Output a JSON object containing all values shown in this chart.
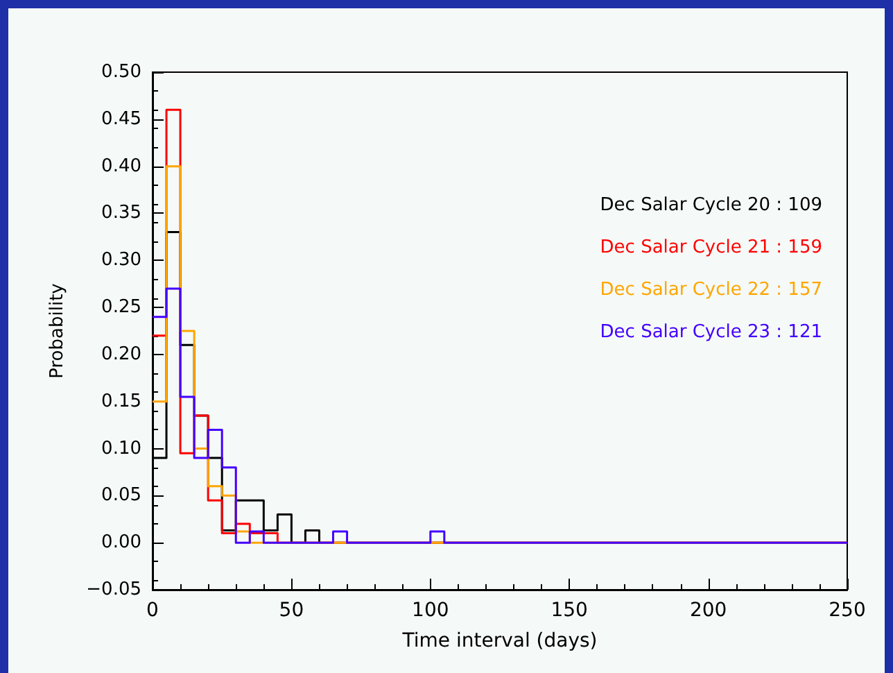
{
  "chart_data": {
    "type": "histogram",
    "xlabel": "Time interval (days)",
    "ylabel": "Probability",
    "bins": [
      0,
      5,
      10,
      15,
      20,
      25,
      30,
      35,
      40,
      45,
      50,
      55,
      60,
      65,
      70,
      75,
      80,
      85,
      90,
      95,
      100,
      105,
      110,
      115,
      120,
      125,
      130,
      135,
      140,
      145,
      150,
      155,
      160,
      165,
      170,
      175,
      180,
      185,
      190,
      195,
      200,
      205,
      210,
      215,
      220,
      225,
      230,
      235,
      240,
      245,
      250
    ],
    "series": [
      {
        "name": "Dec Salar Cycle 20 : 109",
        "color": "#000000",
        "values": [
          0.09,
          0.33,
          0.21,
          0.135,
          0.09,
          0.013,
          0.045,
          0.045,
          0.013,
          0.03,
          0,
          0.013,
          0,
          0,
          0,
          0,
          0,
          0,
          0,
          0,
          0,
          0,
          0,
          0,
          0,
          0,
          0,
          0,
          0,
          0,
          0,
          0,
          0,
          0,
          0,
          0,
          0,
          0,
          0,
          0,
          0,
          0,
          0,
          0,
          0,
          0,
          0,
          0,
          0,
          0
        ]
      },
      {
        "name": "Dec Salar Cycle 21 : 159",
        "color": "#ff0000",
        "values": [
          0.22,
          0.46,
          0.095,
          0.135,
          0.045,
          0.01,
          0.02,
          0.01,
          0.01,
          0,
          0,
          0,
          0,
          0,
          0,
          0,
          0,
          0,
          0,
          0,
          0,
          0,
          0,
          0,
          0,
          0,
          0,
          0,
          0,
          0,
          0,
          0,
          0,
          0,
          0,
          0,
          0,
          0,
          0,
          0,
          0,
          0,
          0,
          0,
          0,
          0,
          0,
          0,
          0,
          0
        ]
      },
      {
        "name": "Dec Salar Cycle 22 : 157",
        "color": "#ffa500",
        "values": [
          0.15,
          0.4,
          0.225,
          0.1,
          0.06,
          0.05,
          0.012,
          0,
          0,
          0,
          0,
          0,
          0,
          0,
          0,
          0,
          0,
          0,
          0,
          0,
          0,
          0,
          0,
          0,
          0,
          0,
          0,
          0,
          0,
          0,
          0,
          0,
          0,
          0,
          0,
          0,
          0,
          0,
          0,
          0,
          0,
          0,
          0,
          0,
          0,
          0,
          0,
          0,
          0,
          0
        ]
      },
      {
        "name": "Dec Salar Cycle 23 : 121",
        "color": "#4400ff",
        "values": [
          0.24,
          0.27,
          0.155,
          0.09,
          0.12,
          0.08,
          0,
          0.012,
          0,
          0,
          0,
          0,
          0,
          0.012,
          0,
          0,
          0,
          0,
          0,
          0,
          0.012,
          0,
          0,
          0,
          0,
          0,
          0,
          0,
          0,
          0,
          0,
          0,
          0,
          0,
          0,
          0,
          0,
          0,
          0,
          0,
          0,
          0,
          0,
          0,
          0,
          0,
          0,
          0,
          0,
          0
        ]
      }
    ],
    "xlim": [
      0,
      250
    ],
    "xticks": [
      0,
      50,
      100,
      150,
      200,
      250
    ],
    "ylim": [
      -0.05,
      0.5
    ],
    "yticks": [
      {
        "value": -0.05,
        "label": "−0.05"
      },
      {
        "value": 0,
        "label": "0.00"
      },
      {
        "value": 0.05,
        "label": "0.05"
      },
      {
        "value": 0.1,
        "label": "0.10"
      },
      {
        "value": 0.15,
        "label": "0.15"
      },
      {
        "value": 0.2,
        "label": "0.20"
      },
      {
        "value": 0.25,
        "label": "0.25"
      },
      {
        "value": 0.3,
        "label": "0.30"
      },
      {
        "value": 0.35,
        "label": "0.35"
      },
      {
        "value": 0.4,
        "label": "0.40"
      },
      {
        "value": 0.45,
        "label": "0.45"
      },
      {
        "value": 0.5,
        "label": "0.50"
      }
    ],
    "legend": "right"
  }
}
